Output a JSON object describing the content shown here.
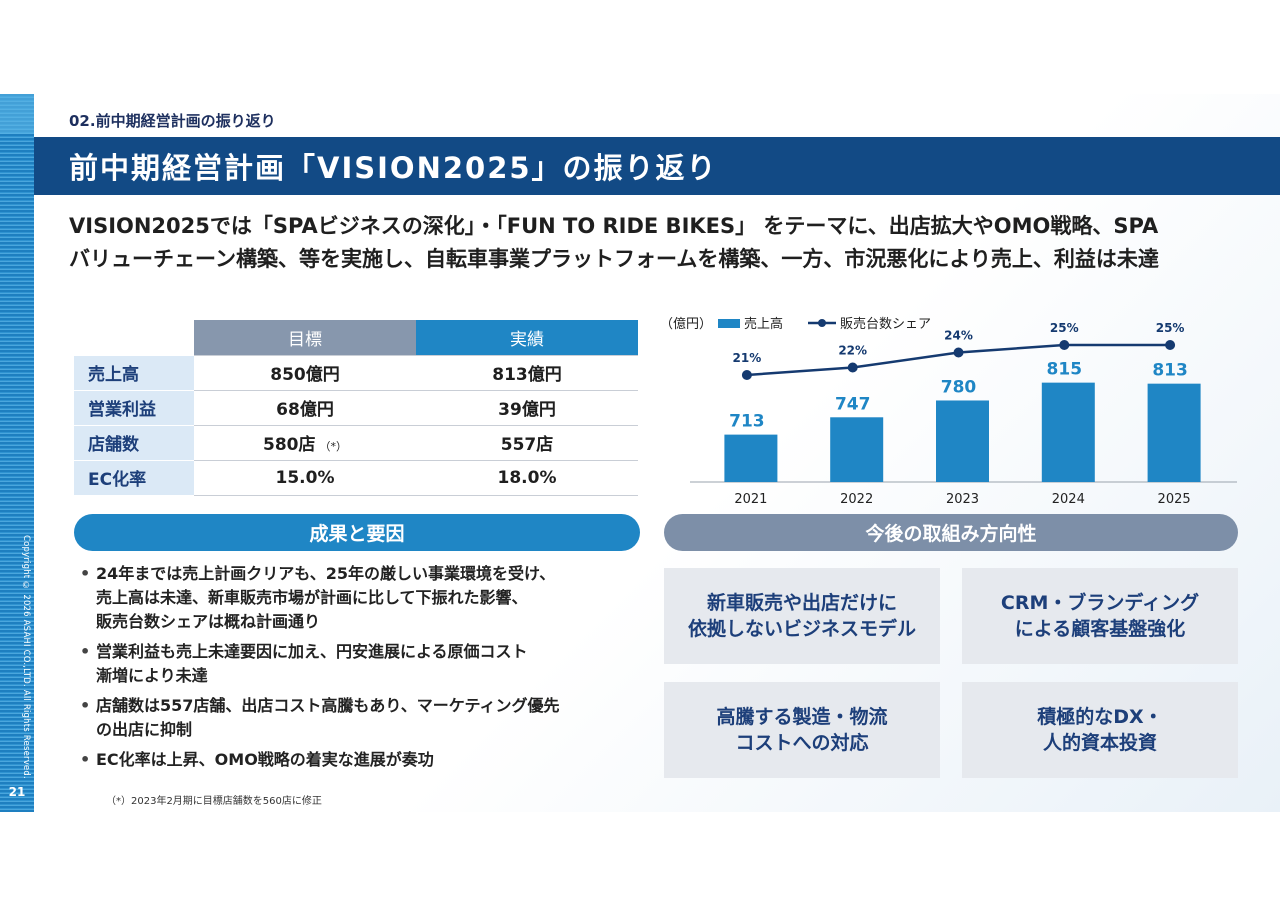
{
  "section_label": "02.前中期経営計画の振り返り",
  "title": "前中期経営計画「VISION2025」の振り返り",
  "lead": {
    "line1": "VISION2025では「SPAビジネスの深化」・「FUN TO RIDE BIKES」 をテーマに、出店拡大やOMO戦略、SPA",
    "line2": "バリューチェーン構築、等を実施し、自転車事業プラットフォームを構築、一方、市況悪化により売上、利益は未達"
  },
  "table": {
    "headers": {
      "target": "目標",
      "actual": "実績"
    },
    "rows": [
      {
        "label": "売上高",
        "target": "850億円",
        "actual": "813億円",
        "note": ""
      },
      {
        "label": "営業利益",
        "target": "68億円",
        "actual": "39億円",
        "note": ""
      },
      {
        "label": "店舗数",
        "target": "580店",
        "actual": "557店",
        "note": "（*）"
      },
      {
        "label": "EC化率",
        "target": "15.0%",
        "actual": "18.0%",
        "note": ""
      }
    ]
  },
  "chart_data": {
    "type": "bar",
    "unit_label": "（億円）",
    "legend": {
      "bar": "売上高",
      "line": "販売台数シェア"
    },
    "categories": [
      "2021",
      "2022",
      "2023",
      "2024",
      "2025"
    ],
    "series": [
      {
        "name": "売上高",
        "type": "bar",
        "values": [
          713,
          747,
          780,
          815,
          813
        ]
      },
      {
        "name": "販売台数シェア",
        "type": "line",
        "values": [
          21,
          22,
          24,
          25,
          25
        ],
        "labels": [
          "21%",
          "22%",
          "24%",
          "25%",
          "25%"
        ]
      }
    ],
    "colors": {
      "bar": "#1f86c5",
      "line": "#153a70",
      "bar_label": "#1f86c5"
    }
  },
  "results": {
    "heading": "成果と要因",
    "bullets": [
      "24年までは売上計画クリアも、25年の厳しい事業環境を受け、\n売上高は未達、新車販売市場が計画に比して下振れた影響、\n販売台数シェアは概ね計画通り",
      "営業利益も売上未達要因に加え、円安進展による原価コスト\n漸増により未達",
      "店舗数は557店舗、出店コスト高騰もあり、マーケティング優先\nの出店に抑制",
      "EC化率は上昇、OMO戦略の着実な進展が奏功"
    ],
    "footnote": "（*）2023年2月期に目標店舗数を560店に修正"
  },
  "future": {
    "heading": "今後の取組み方向性",
    "boxes": [
      "新車販売や出店だけに\n依拠しないビジネスモデル",
      "CRM・ブランディング\nによる顧客基盤強化",
      "高騰する製造・物流\nコストへの対応",
      "積極的なDX・\n人的資本投資"
    ]
  },
  "copyright": "Copyright © 2026 ASAHI CO.,LTD. All Rights Reserved.",
  "page_number": "21"
}
